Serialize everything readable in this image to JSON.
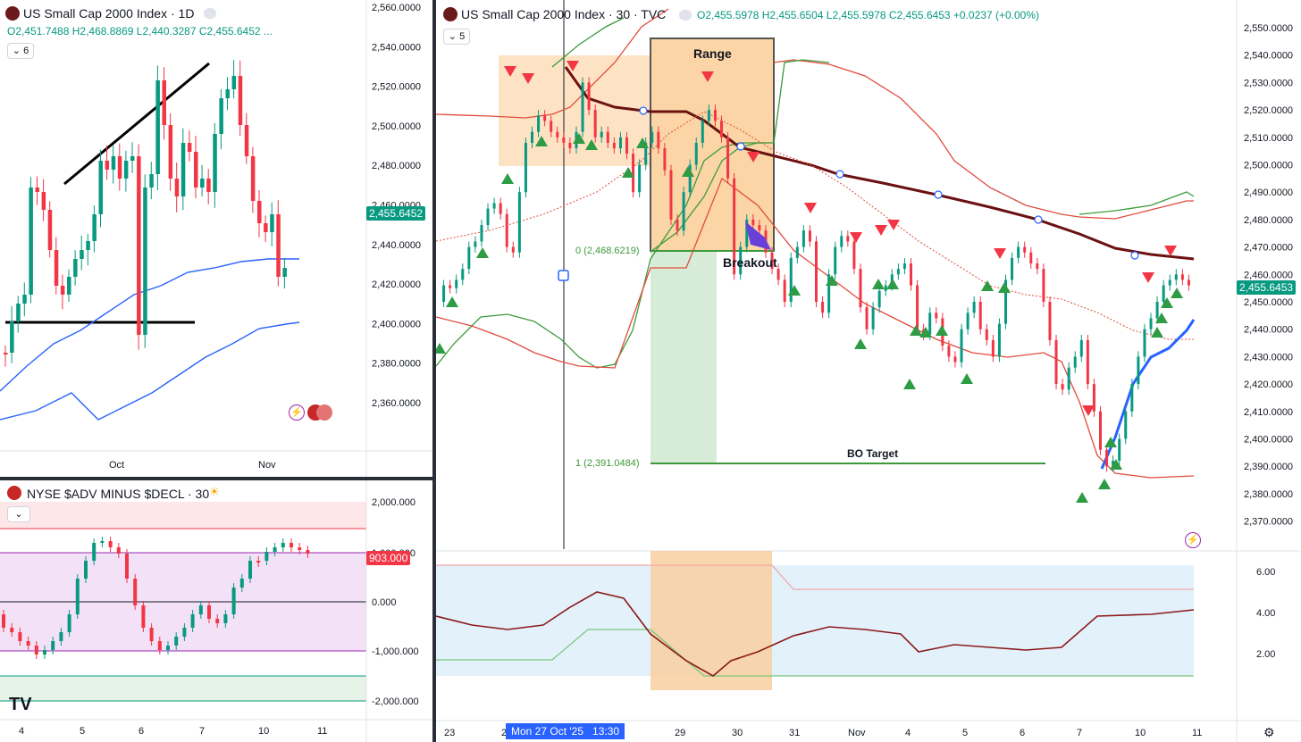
{
  "left_chart": {
    "title": "US Small Cap 2000 Index · 1D",
    "ohlc": "O2,451.7488  H2,468.8869  L2,440.3287  C2,455.6452  ...",
    "indicator_count": "6",
    "price_badge": "2,455.6452",
    "x_ticks": [
      "Oct",
      "Nov"
    ],
    "y_ticks": [
      "2,560.0000",
      "2,540.0000",
      "2,520.0000",
      "2,500.0000",
      "2,480.0000",
      "2,460.0000",
      "2,440.0000",
      "2,420.0000",
      "2,400.0000",
      "2,380.0000",
      "2,360.0000"
    ]
  },
  "breadth_chart": {
    "title": "NYSE $ADV MINUS $DECL · 30",
    "badge": "903.000",
    "y_ticks": [
      "2,000.000",
      "1,000.000",
      "0.000",
      "-1,000.000",
      "-2,000.000"
    ],
    "x_ticks": [
      "4",
      "5",
      "6",
      "7",
      "10",
      "11"
    ]
  },
  "main_chart": {
    "title": "US Small Cap 2000 Index · 30 · TVC",
    "ohlc": "O2,455.5978  H2,455.6504  L2,455.5978  C2,455.6453  +0.0237 (+0.00%)",
    "indicator_count": "5",
    "price_badge": "2,455.6453",
    "annotations": {
      "range": "Range",
      "breakout": "Breakout",
      "bo_target": "BO Target",
      "level_0": "0 (2,468.6219)",
      "level_1": "1 (2,391.0484)"
    },
    "y_ticks": [
      "2,550.0000",
      "2,540.0000",
      "2,530.0000",
      "2,520.0000",
      "2,510.0000",
      "2,500.0000",
      "2,490.0000",
      "2,480.0000",
      "2,470.0000",
      "2,460.0000",
      "2,450.0000",
      "2,440.0000",
      "2,430.0000",
      "2,420.0000",
      "2,410.0000",
      "2,400.0000",
      "2,390.0000",
      "2,380.0000",
      "2,370.0000"
    ],
    "x_ticks": [
      "23",
      "2",
      "29",
      "30",
      "31",
      "Nov",
      "4",
      "5",
      "6",
      "7",
      "10",
      "11"
    ],
    "crosshair_label": "Mon 27 Oct '25",
    "crosshair_time": "13:30"
  },
  "oscillator": {
    "y_ticks": [
      "6.00",
      "4.00",
      "2.00"
    ]
  },
  "colors": {
    "up": "#089981",
    "down": "#f23645",
    "ma_blue": "#2962ff",
    "range_fill": "#f9cfa0",
    "dark_ma": "#6b1111",
    "band_red": "#e04b3c",
    "band_green": "#3c9a3c"
  },
  "chart_data": {
    "type": "line",
    "title": "US Small Cap 2000 Index · 30 · TVC",
    "x": [
      "23",
      "27",
      "28",
      "29",
      "30",
      "31",
      "Nov 3",
      "4",
      "5",
      "6",
      "7",
      "10",
      "11"
    ],
    "series": [
      {
        "values": [
          2452,
          2510,
          2502,
          2512,
          2470,
          2462,
          2455,
          2438,
          2432,
          2440,
          2390,
          2445,
          2456
        ]
      }
    ],
    "ylim": [
      2365,
      2555
    ],
    "range_box": {
      "high": 2540,
      "low": 2468.62
    },
    "breakout_level": 2468.6219,
    "bo_target": 2391.0484
  }
}
